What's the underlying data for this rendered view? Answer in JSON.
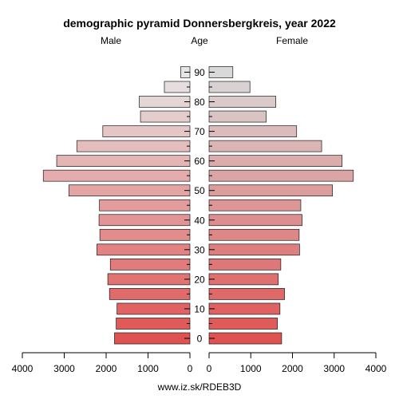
{
  "chart_data": {
    "type": "bar",
    "title": "demographic pyramid Donnersbergkreis, year 2022",
    "left_label": "Male",
    "center_label": "Age",
    "right_label": "Female",
    "footer": "www.iz.sk/RDEB3D",
    "age_groups": [
      0,
      5,
      10,
      15,
      20,
      25,
      30,
      35,
      40,
      45,
      50,
      55,
      60,
      65,
      70,
      75,
      80,
      85,
      90
    ],
    "age_tick_labels": [
      "0",
      "10",
      "20",
      "30",
      "40",
      "50",
      "60",
      "70",
      "80",
      "90"
    ],
    "age_tick_values": [
      0,
      10,
      20,
      30,
      40,
      50,
      60,
      70,
      80,
      90
    ],
    "x_tick_values_left": [
      4000,
      3000,
      2000,
      1000,
      0
    ],
    "x_tick_labels_left": [
      "4000",
      "3000",
      "2000",
      "1000",
      "0"
    ],
    "x_tick_values_right": [
      0,
      1000,
      2000,
      3000,
      4000
    ],
    "x_tick_labels_right": [
      "0",
      "1000",
      "2000",
      "3000",
      "4000"
    ],
    "xlim": [
      0,
      4000
    ],
    "series": [
      {
        "name": "Male",
        "values": [
          1800,
          1760,
          1740,
          1920,
          1960,
          1900,
          2220,
          2150,
          2170,
          2160,
          2890,
          3500,
          3180,
          2700,
          2080,
          1180,
          1210,
          610,
          220
        ]
      },
      {
        "name": "Female",
        "values": [
          1740,
          1640,
          1700,
          1810,
          1660,
          1720,
          2170,
          2160,
          2230,
          2200,
          2960,
          3460,
          3190,
          2700,
          2100,
          1370,
          1600,
          980,
          570
        ]
      }
    ],
    "colors": {
      "young": "#e05252",
      "old_male": "#e6e6e6",
      "old_female": "#d9d9d9"
    },
    "grid": false
  }
}
